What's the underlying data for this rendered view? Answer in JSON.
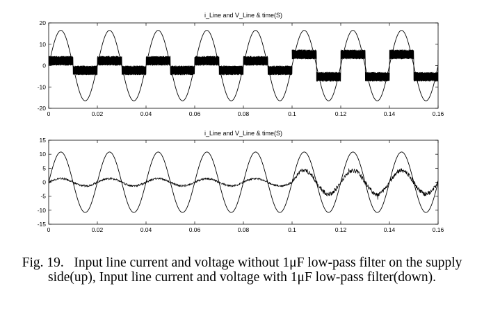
{
  "caption": {
    "label": "Fig. 19.",
    "text": "Input line current and voltage without 1μF low-pass filter on the supply side(up), Input line current and voltage with 1μF low-pass filter(down)."
  },
  "chart_data": [
    {
      "type": "line",
      "title": "i_Line and V_Line  & time(S)",
      "xlabel": "",
      "ylabel": "",
      "xlim": [
        0,
        0.16
      ],
      "ylim": [
        -20,
        20
      ],
      "xticks": [
        "0",
        "0.02",
        "0.04",
        "0.06",
        "0.08",
        "0.1",
        "0.12",
        "0.14",
        "0.16"
      ],
      "yticks": [
        "20",
        "10",
        "0",
        "-10",
        "-20"
      ],
      "grid": false,
      "series": [
        {
          "kind": "voltage",
          "frequency_hz": 50,
          "amplitude": 16.5,
          "values_desc": "sinusoid"
        },
        {
          "kind": "current",
          "frequency_hz": 50,
          "segments": [
            {
              "t": [
                0,
                0.1
              ],
              "band_low": 0,
              "band_high": 4.5
            },
            {
              "t": [
                0.1,
                0.16
              ],
              "band_low": 3,
              "band_high": 7.5
            }
          ]
        }
      ]
    },
    {
      "type": "line",
      "title": "i_Line and V_Line  & time(S)",
      "xlabel": "",
      "ylabel": "",
      "xlim": [
        0,
        0.16
      ],
      "ylim": [
        -15,
        15
      ],
      "xticks": [
        "0",
        "0.02",
        "0.04",
        "0.06",
        "0.08",
        "0.1",
        "0.12",
        "0.14",
        "0.16"
      ],
      "yticks": [
        "15",
        "10",
        "5",
        "0",
        "-5",
        "-10",
        "-15"
      ],
      "grid": false,
      "series": [
        {
          "kind": "voltage",
          "frequency_hz": 50,
          "amplitude": 10.8
        },
        {
          "kind": "current",
          "frequency_hz": 50,
          "amplitude_before": 1.3,
          "amplitude_after": 4.2,
          "switch_t": 0.1
        }
      ]
    }
  ],
  "colors": {
    "line": "#000000",
    "background": "#ffffff"
  }
}
